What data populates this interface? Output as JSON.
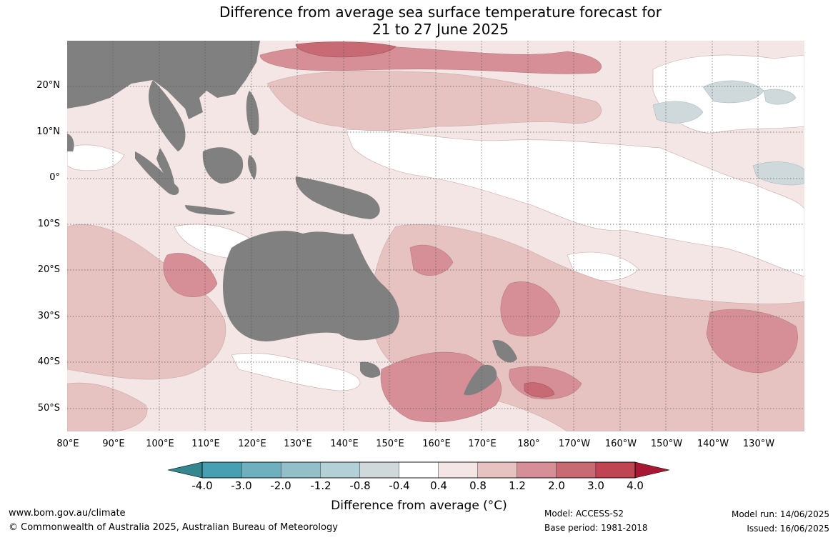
{
  "title": {
    "line1": "Difference from average sea surface temperature forecast for",
    "line2": "21 to 27 June 2025"
  },
  "map": {
    "lat_labels": [
      "20°N",
      "10°N",
      "0°",
      "10°S",
      "20°S",
      "30°S",
      "40°S",
      "50°S"
    ],
    "lon_labels": [
      "80°E",
      "90°E",
      "100°E",
      "110°E",
      "120°E",
      "130°E",
      "140°E",
      "150°E",
      "160°E",
      "170°E",
      "180°",
      "170°W",
      "160°W",
      "150°W",
      "140°W",
      "130°W"
    ],
    "land_color": "#808080",
    "ocean_base_color": "#f3e6e5"
  },
  "colorbar": {
    "ticks": [
      "-4.0",
      "-3.0",
      "-2.0",
      "-1.2",
      "-0.8",
      "-0.4",
      "0.4",
      "0.8",
      "1.2",
      "2.0",
      "3.0",
      "4.0"
    ],
    "colors": [
      "#47a0b2",
      "#6fb0be",
      "#93bfc8",
      "#b2d0d5",
      "#cfd9db",
      "#ffffff",
      "#f3e6e5",
      "#e6c2c0",
      "#d68f96",
      "#c86a74",
      "#bf4553"
    ],
    "under_color": "#34868f",
    "over_color": "#a81832",
    "label": "Difference from average (°C)"
  },
  "footer": {
    "website": "www.bom.gov.au/climate",
    "copyright": "© Commonwealth of Australia 2025, Australian Bureau of Meteorology",
    "model": "Model: ACCESS-S2",
    "base_period": "Base period: 1981-2018",
    "model_run": "Model run: 14/06/2025",
    "issued": "Issued: 16/06/2025"
  }
}
